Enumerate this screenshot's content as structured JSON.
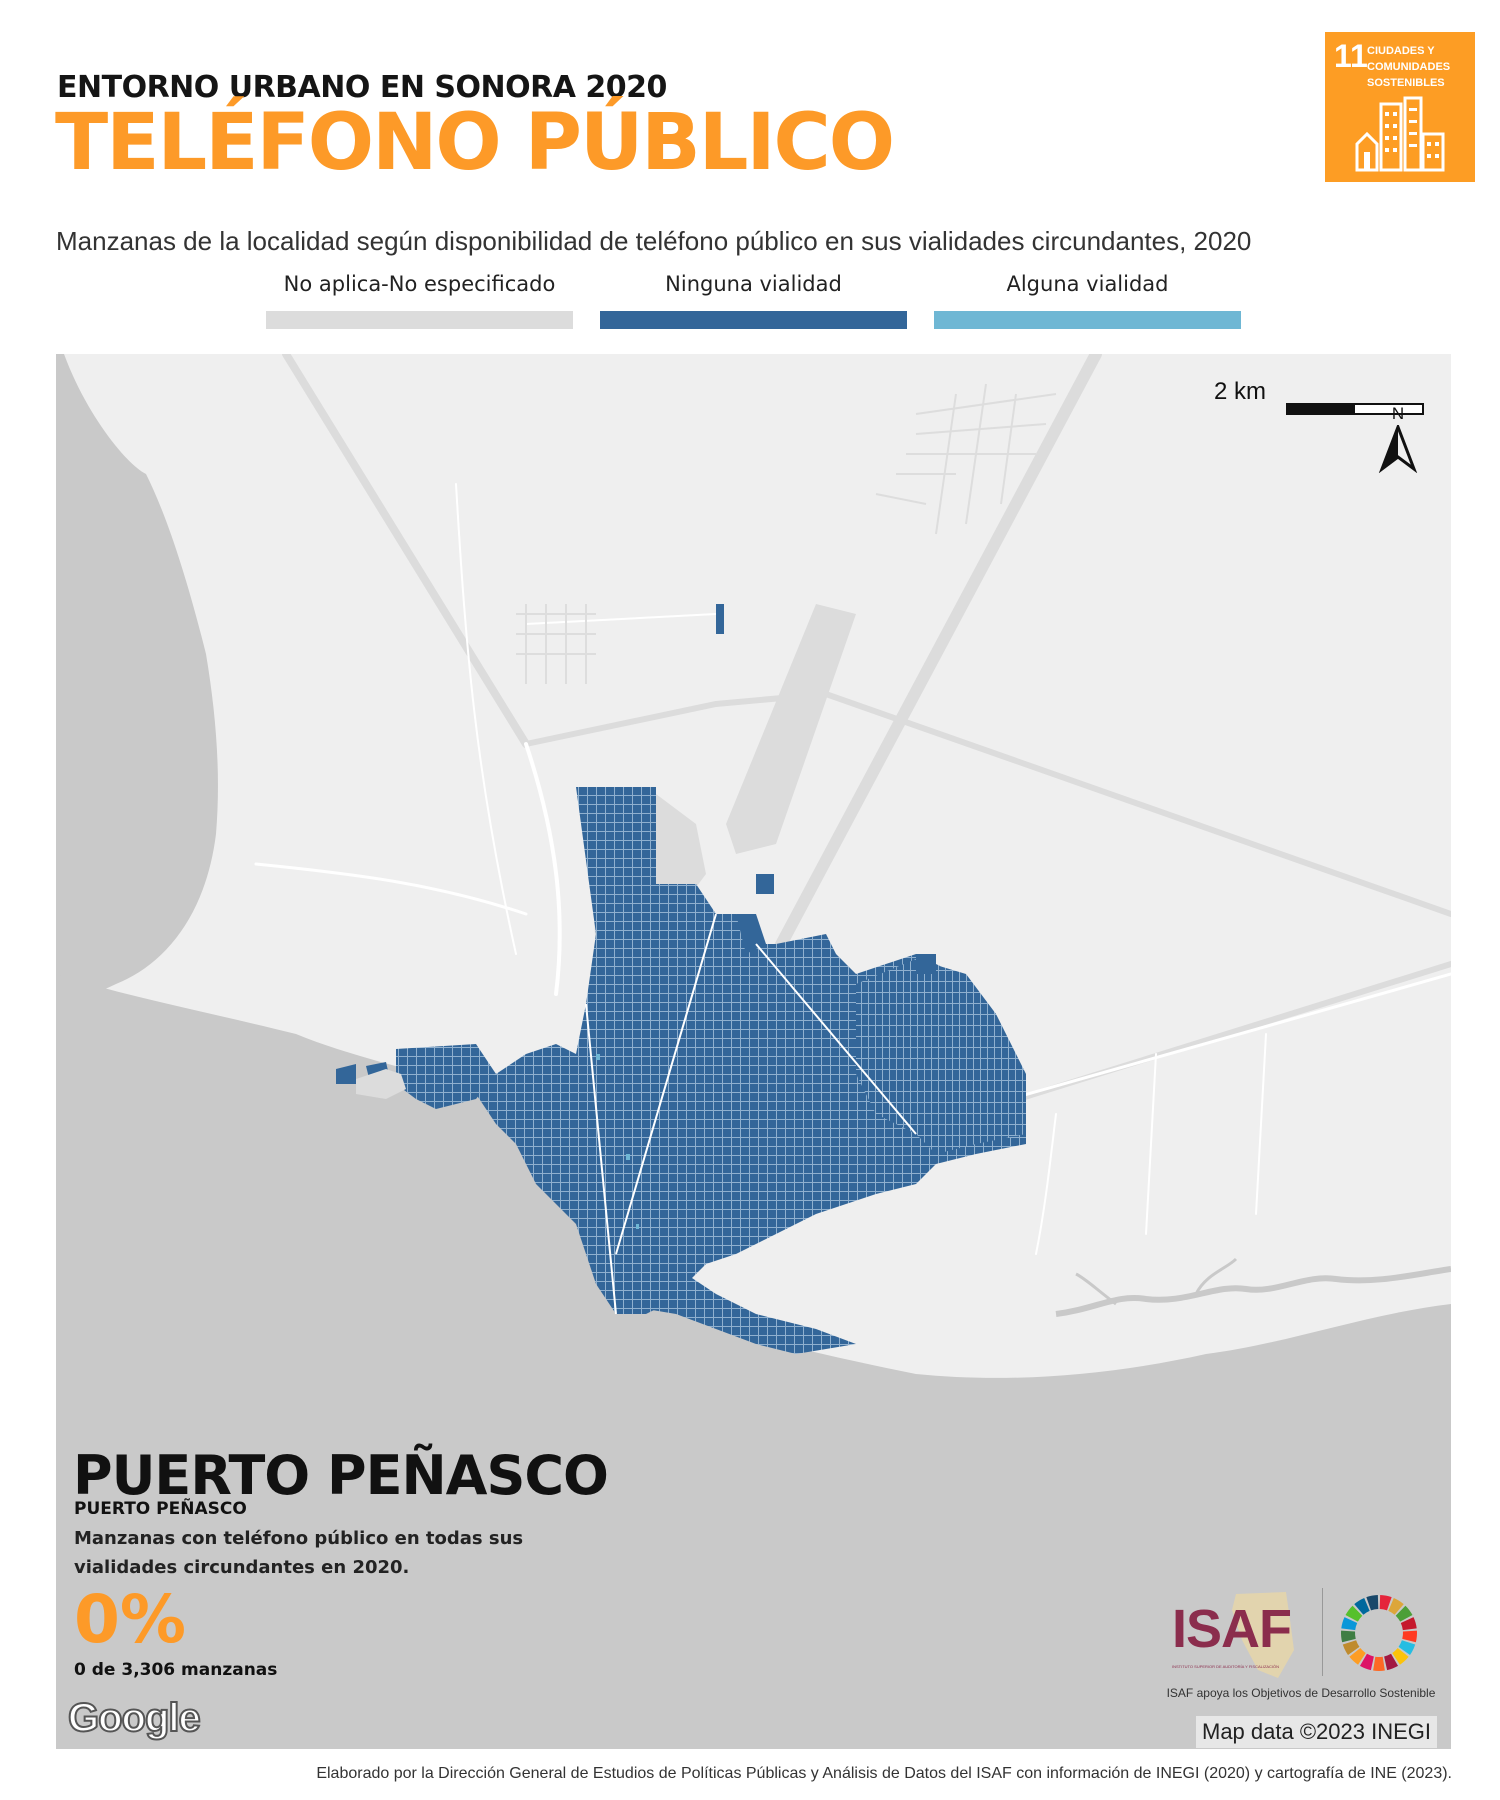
{
  "header": {
    "kicker": "ENTORNO URBANO EN SONORA 2020",
    "title": "TELÉFONO PÚBLICO",
    "subtitle": "Manzanas de la localidad según disponibilidad de teléfono público en sus vialidades circundantes, 2020"
  },
  "sdg_badge": {
    "number": "11",
    "text": "CIUDADES Y COMUNIDADES SOSTENIBLES",
    "color": "#fd9d24",
    "icon": "city-buildings-icon"
  },
  "legend": [
    {
      "label": "No aplica-No especificado",
      "color": "#dcdcdc"
    },
    {
      "label": "Ninguna vialidad",
      "color": "#336699"
    },
    {
      "label": "Alguna vialidad",
      "color": "#6fb7d4"
    }
  ],
  "map": {
    "scale_label": "2 km",
    "north_label": "N",
    "locality": "PUERTO PEÑASCO",
    "municipality": "PUERTO PEÑASCO",
    "indicator_text": "Manzanas con teléfono público en todas sus vialidades circundantes en 2020.",
    "percentage": "0%",
    "count_text": "0 de 3,306 manzanas",
    "google_mark": "Google",
    "attribution": "Map data ©2023 INEGI",
    "colors": {
      "sea": "#c9c9c9",
      "land": "#efefef",
      "roads": "#ffffff",
      "blocks": "#336699",
      "not_applicable": "#dcdcdc"
    }
  },
  "logos": {
    "isaf": "ISAF",
    "isaf_small": "INSTITUTO SUPERIOR DE AUDITORÍA Y FISCALIZACIÓN",
    "tagline": "ISAF apoya los Objetivos de Desarrollo Sostenible"
  },
  "footer": "Elaborado por la Dirección General de Estudios de Políticas Públicas y Análisis de Datos del ISAF con información de INEGI (2020) y cartografía de INE (2023)."
}
